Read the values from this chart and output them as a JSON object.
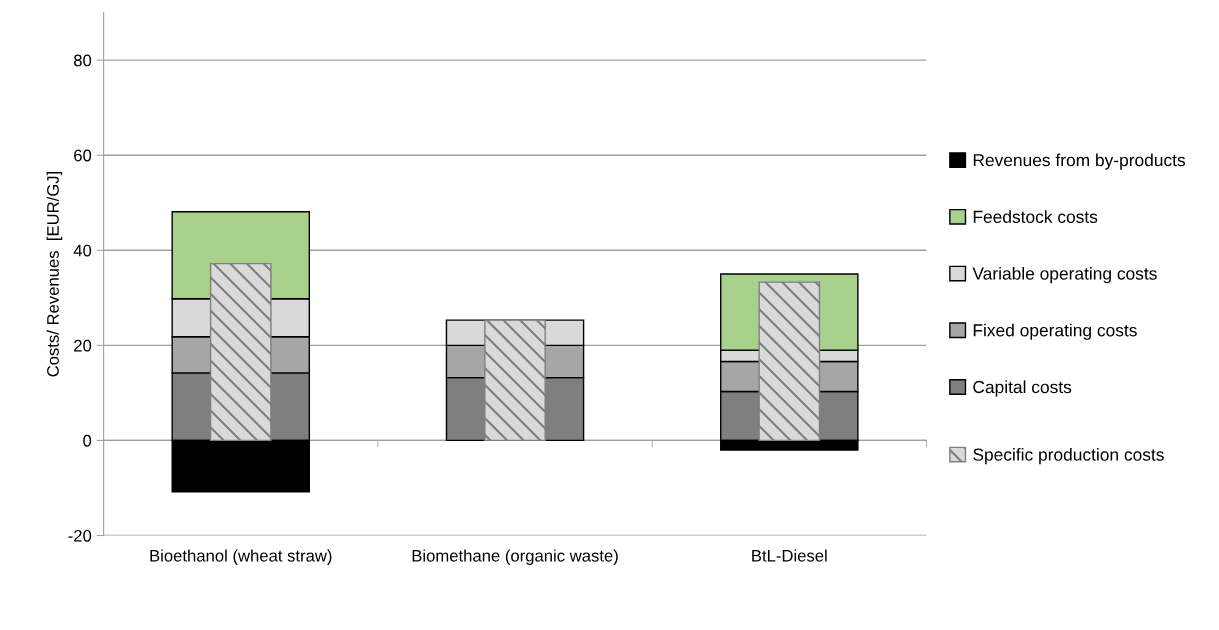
{
  "chart_data": [
    {
      "type": "bar",
      "stacked": true,
      "categories": [
        "Bioethanol (wheat straw)",
        "Biomethane (organic waste)",
        "BtL-Diesel"
      ],
      "ylabel": "Costs/ Revenues  [EUR/GJ]",
      "ylim": [
        -20,
        90
      ],
      "yticks": [
        -20,
        0,
        20,
        40,
        60,
        80
      ],
      "grid": "y",
      "legend": "right",
      "series": [
        {
          "name": "Capital costs",
          "color": "#7f7f7f",
          "values": [
            14.2,
            13.2,
            10.3
          ]
        },
        {
          "name": "Fixed operating costs",
          "color": "#a6a6a6",
          "values": [
            7.6,
            6.8,
            6.3
          ]
        },
        {
          "name": "Variable operating costs",
          "color": "#d9d9d9",
          "values": [
            8.0,
            5.3,
            2.4
          ]
        },
        {
          "name": "Feedstock costs",
          "color": "#a9d18e",
          "values": [
            18.3,
            null,
            16.0
          ]
        },
        {
          "name": "Revenues from by-products",
          "color": "#000000",
          "values": [
            -10.8,
            null,
            -2.0
          ]
        }
      ]
    },
    {
      "type": "bar",
      "categories": [
        null,
        null,
        null
      ],
      "ylim": [
        -20,
        90
      ],
      "tick_labels": false,
      "legend": "right",
      "series": [
        {
          "name": "Specific production costs",
          "color": "#7f7f7f",
          "values": [
            37.2,
            25.3,
            33.3
          ]
        }
      ]
    }
  ]
}
